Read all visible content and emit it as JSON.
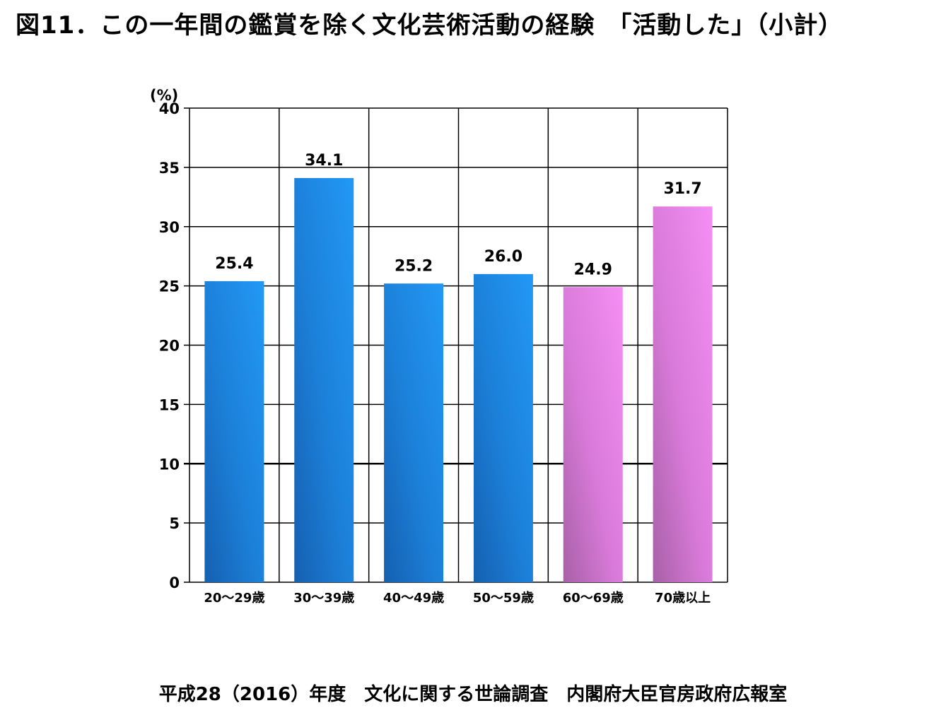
{
  "title": "図11．この一年間の鑑賞を除く文化芸術活動の経験　「活動した」（小計）",
  "footer": "平成28（2016）年度　文化に関する世論調査　内閣府大臣官房政府広報室",
  "colors": {
    "blue_light": "#2196f3",
    "blue_dark": "#1565b8",
    "pink_light": "#f28af2",
    "pink_dark": "#b060b0",
    "grid": "#000000"
  },
  "chart_data": {
    "type": "bar",
    "title": "図11．この一年間の鑑賞を除く文化芸術活動の経験　「活動した」（小計）",
    "ylabel": "(%)",
    "xlabel": "",
    "categories": [
      "20～29歳",
      "30～39歳",
      "40～49歳",
      "50～59歳",
      "60～69歳",
      "70歳以上"
    ],
    "values": [
      25.4,
      34.1,
      25.2,
      26.0,
      24.9,
      31.7
    ],
    "value_labels": [
      "25.4",
      "34.1",
      "25.2",
      "26.0",
      "24.9",
      "31.7"
    ],
    "bar_colors": [
      "blue",
      "blue",
      "blue",
      "blue",
      "pink",
      "pink"
    ],
    "ylim": [
      0,
      40
    ],
    "yticks": [
      0,
      5,
      10,
      15,
      20,
      25,
      30,
      35,
      40
    ],
    "grid": true,
    "legend": "none"
  }
}
